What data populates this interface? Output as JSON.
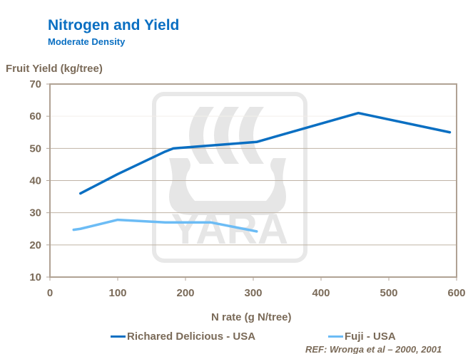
{
  "chart_data": {
    "type": "line",
    "title": "Nitrogen and Yield",
    "subtitle": "Moderate Density",
    "xlabel": "N rate (g N/tree)",
    "ylabel": "Fruit Yield (kg/tree)",
    "xlim": [
      0,
      600
    ],
    "ylim": [
      10,
      70
    ],
    "xticks": [
      "0",
      "100",
      "200",
      "300",
      "400",
      "500",
      "600"
    ],
    "yticks": [
      "10",
      "20",
      "30",
      "40",
      "50",
      "60",
      "70"
    ],
    "grid": true,
    "legend_position": "bottom",
    "series": [
      {
        "name": "Richared Delicious - USA",
        "color": "#0a6fc2",
        "x": [
          45,
          100,
          170,
          182,
          305,
          455,
          590
        ],
        "y": [
          36,
          42,
          49,
          50,
          52,
          61,
          55
        ]
      },
      {
        "name": "Fuji - USA",
        "color": "#6cbcf5",
        "x": [
          35,
          45,
          100,
          170,
          237,
          305
        ],
        "y": [
          24.7,
          25,
          27.8,
          27,
          27,
          24.2
        ]
      }
    ],
    "annotation": "REF: Wronga et al – 2000, 2001",
    "watermark": "YARA"
  }
}
